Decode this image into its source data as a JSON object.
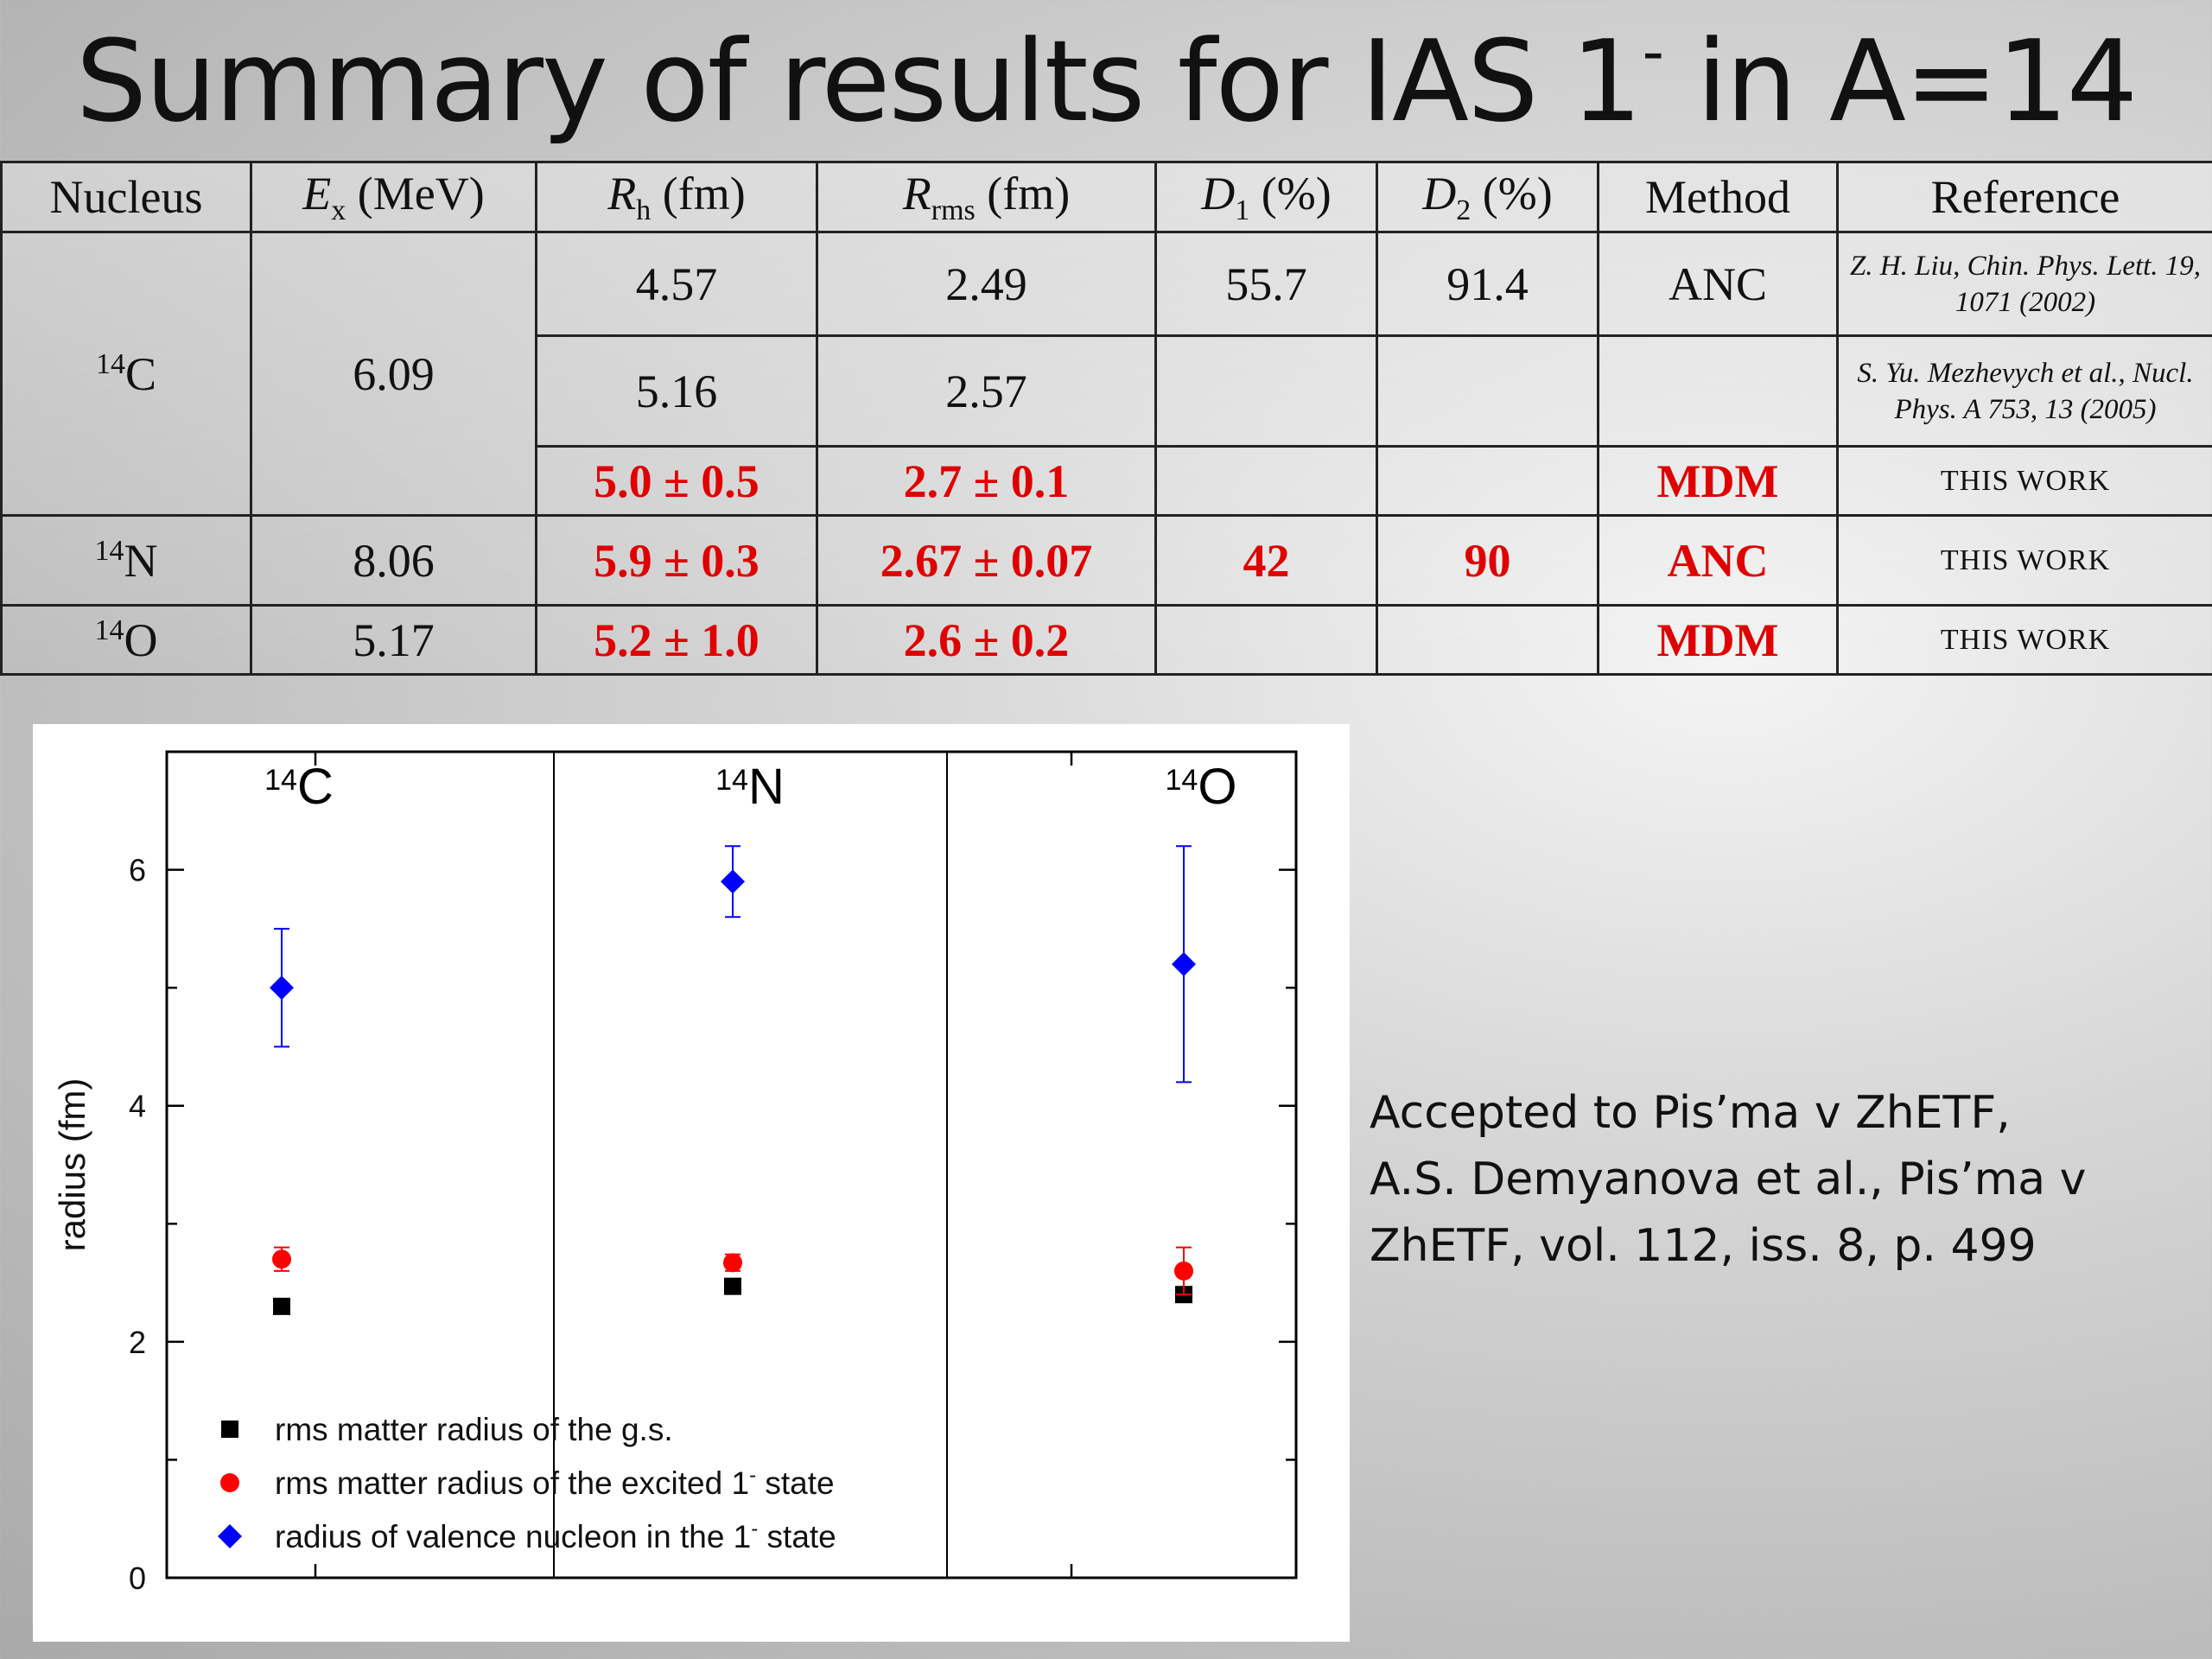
{
  "title": {
    "text": "Summary of results for IAS 1",
    "sup": "-",
    "tail": " in A=14"
  },
  "table": {
    "headers": [
      {
        "main": "Nucleus"
      },
      {
        "main": "E",
        "sub": "x",
        "unit": " (MeV)"
      },
      {
        "main": "R",
        "sub": "h",
        "unit": " (fm)"
      },
      {
        "main": "R",
        "sub": "rms",
        "unit": " (fm)"
      },
      {
        "main": "D",
        "sub": "1",
        "unit": " (%)"
      },
      {
        "main": "D",
        "sub": "2",
        "unit": " (%)"
      },
      {
        "main": "Method"
      },
      {
        "main": "Reference"
      }
    ],
    "c14": {
      "mass": "14",
      "symbol": "C",
      "ex": "6.09",
      "rows": [
        {
          "rh": "4.57",
          "rrms": "2.49",
          "d1": "55.7",
          "d2": "91.4",
          "method": "ANC",
          "ref": "Z. H. Liu, Chin. Phys. Lett. 19, 1071 (2002)"
        },
        {
          "rh": "5.16",
          "rrms": "2.57",
          "d1": "",
          "d2": "",
          "method": "",
          "ref": "S. Yu. Mezhevych et al., Nucl. Phys. A 753, 13 (2005)"
        },
        {
          "rh": "5.0 ± 0.5",
          "rrms": "2.7 ± 0.1",
          "d1": "",
          "d2": "",
          "method": "MDM",
          "ref": "THIS WORK"
        }
      ]
    },
    "n14": {
      "mass": "14",
      "symbol": "N",
      "ex": "8.06",
      "rh": "5.9 ± 0.3",
      "rrms": "2.67 ± 0.07",
      "d1": "42",
      "d2": "90",
      "method": "ANC",
      "ref": "THIS WORK"
    },
    "o14": {
      "mass": "14",
      "symbol": "O",
      "ex": "5.17",
      "rh": "5.2 ± 1.0",
      "rrms": "2.6 ± 0.2",
      "d1": "",
      "d2": "",
      "method": "MDM",
      "ref": "THIS WORK"
    }
  },
  "caption": {
    "lines": [
      "Accepted to Pis’ma v ZhETF,",
      "A.S. Demyanova et al., Pis’ma v",
      "ZhETF, vol. 112, iss. 8, p. 499"
    ]
  },
  "chart_data": {
    "type": "scatter",
    "ylabel": "radius (fm)",
    "ylim": [
      0,
      7
    ],
    "yticks": [
      0,
      2,
      4,
      6
    ],
    "categories": [
      {
        "mass": "14",
        "symbol": "C"
      },
      {
        "mass": "14",
        "symbol": "N"
      },
      {
        "mass": "14",
        "symbol": "O"
      }
    ],
    "series": [
      {
        "name": "rms matter radius of the g.s.",
        "marker": "square",
        "color": "#000000",
        "values": [
          2.3,
          2.47,
          2.4
        ],
        "errors": [
          0,
          0,
          0
        ]
      },
      {
        "name": "rms matter radius of the excited 1",
        "name_sup": "-",
        "name_tail": " state",
        "marker": "circle",
        "color": "#ff0000",
        "values": [
          2.7,
          2.67,
          2.6
        ],
        "errors": [
          0.1,
          0.07,
          0.2
        ]
      },
      {
        "name": "radius of valence nucleon in the 1",
        "name_sup": "-",
        "name_tail": " state",
        "marker": "diamond",
        "color": "#0000ff",
        "values": [
          5.0,
          5.9,
          5.2
        ],
        "errors": [
          0.5,
          0.3,
          1.0
        ]
      }
    ],
    "legend_position": "bottom-left",
    "grid": false
  }
}
